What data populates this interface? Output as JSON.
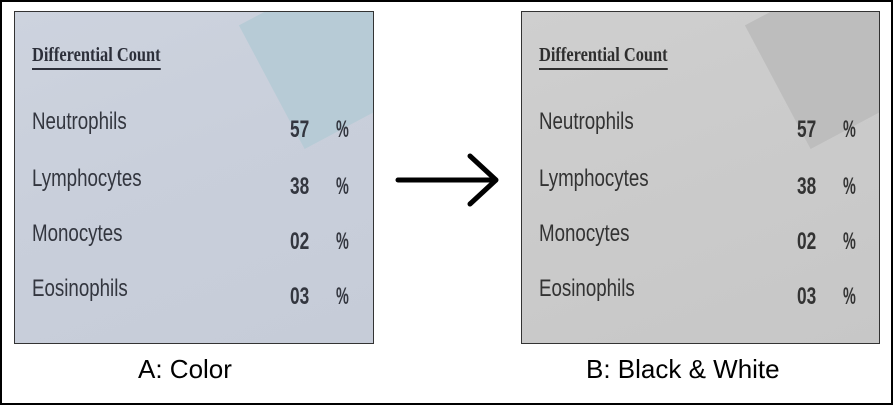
{
  "panels": [
    {
      "id": "a",
      "heading": "Differential Count",
      "rows": [
        {
          "name": "Neutrophils",
          "value": "57",
          "unit": "%"
        },
        {
          "name": "Lymphocytes",
          "value": "38",
          "unit": "%"
        },
        {
          "name": "Monocytes",
          "value": "02",
          "unit": "%"
        },
        {
          "name": "Eosinophils",
          "value": "03",
          "unit": "%"
        }
      ],
      "caption": "A: Color"
    },
    {
      "id": "b",
      "heading": "Differential Count",
      "rows": [
        {
          "name": "Neutrophils",
          "value": "57",
          "unit": "%"
        },
        {
          "name": "Lymphocytes",
          "value": "38",
          "unit": "%"
        },
        {
          "name": "Monocytes",
          "value": "02",
          "unit": "%"
        },
        {
          "name": "Eosinophils",
          "value": "03",
          "unit": "%"
        }
      ],
      "caption": "B: Black & White"
    }
  ],
  "arrow": {
    "icon": "right-arrow-icon",
    "color": "#000000"
  }
}
